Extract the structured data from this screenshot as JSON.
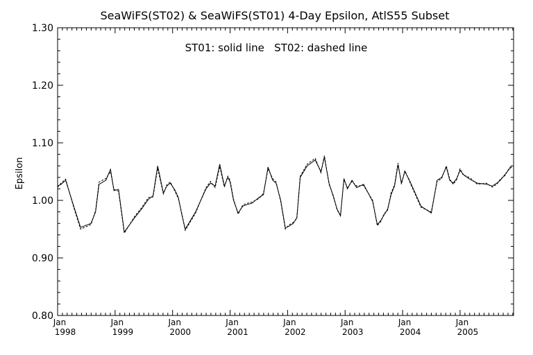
{
  "chart_data": {
    "type": "line",
    "title": "SeaWiFS(ST02) & SeaWiFS(ST01) 4-Day Epsilon, AtlS55 Subset",
    "subtitle": "ST01: solid line   ST02: dashed line",
    "xlabel": "",
    "ylabel": "Epsilon",
    "ylim": [
      0.8,
      1.3
    ],
    "xlim": [
      1998.0,
      2005.9
    ],
    "yticks": [
      "0.80",
      "0.90",
      "1.00",
      "1.10",
      "1.20",
      "1.30"
    ],
    "xticks": [
      {
        "value": 1998,
        "month": "Jan",
        "year": "1998"
      },
      {
        "value": 1999,
        "month": "Jan",
        "year": "1999"
      },
      {
        "value": 2000,
        "month": "Jan",
        "year": "2000"
      },
      {
        "value": 2001,
        "month": "Jan",
        "year": "2001"
      },
      {
        "value": 2002,
        "month": "Jan",
        "year": "2002"
      },
      {
        "value": 2003,
        "month": "Jan",
        "year": "2003"
      },
      {
        "value": 2004,
        "month": "Jan",
        "year": "2004"
      },
      {
        "value": 2005,
        "month": "Jan",
        "year": "2005"
      }
    ],
    "series": [
      {
        "name": "ST01",
        "style": "solid",
        "color": "#000000",
        "x": [
          1998.0,
          1998.06,
          1998.14,
          1998.28,
          1998.4,
          1998.58,
          1998.66,
          1998.72,
          1998.84,
          1998.92,
          1998.98,
          1999.06,
          1999.16,
          1999.34,
          1999.46,
          1999.58,
          1999.66,
          1999.74,
          1999.84,
          1999.9,
          1999.96,
          2000.04,
          2000.1,
          2000.16,
          2000.22,
          2000.4,
          2000.58,
          2000.66,
          2000.74,
          2000.82,
          2000.9,
          2000.96,
          2001.0,
          2001.06,
          2001.14,
          2001.22,
          2001.3,
          2001.38,
          2001.5,
          2001.58,
          2001.66,
          2001.74,
          2001.8,
          2001.88,
          2001.96,
          2002.02,
          2002.1,
          2002.16,
          2002.22,
          2002.34,
          2002.48,
          2002.58,
          2002.64,
          2002.72,
          2002.8,
          2002.86,
          2002.92,
          2002.98,
          2003.04,
          2003.12,
          2003.2,
          2003.32,
          2003.48,
          2003.56,
          2003.62,
          2003.68,
          2003.74,
          2003.8,
          2003.86,
          2003.92,
          2003.98,
          2004.04,
          2004.12,
          2004.32,
          2004.5,
          2004.6,
          2004.68,
          2004.76,
          2004.82,
          2004.88,
          2004.94,
          2005.0,
          2005.06,
          2005.12,
          2005.2,
          2005.3,
          2005.46,
          2005.56,
          2005.64,
          2005.7,
          2005.78,
          2005.86,
          2005.9
        ],
        "y": [
          1.025,
          1.028,
          1.035,
          0.99,
          0.953,
          0.96,
          0.98,
          1.028,
          1.035,
          1.054,
          1.017,
          1.019,
          0.945,
          0.97,
          0.985,
          1.002,
          1.008,
          1.06,
          1.013,
          1.025,
          1.03,
          1.018,
          1.005,
          0.975,
          0.95,
          0.98,
          1.02,
          1.03,
          1.025,
          1.063,
          1.025,
          1.04,
          1.032,
          1.0,
          0.978,
          0.99,
          0.993,
          0.995,
          1.005,
          1.01,
          1.058,
          1.035,
          1.03,
          1.0,
          0.952,
          0.955,
          0.96,
          0.97,
          1.04,
          1.06,
          1.07,
          1.05,
          1.075,
          1.03,
          1.005,
          0.985,
          0.973,
          1.038,
          1.02,
          1.035,
          1.022,
          1.028,
          0.998,
          0.958,
          0.965,
          0.975,
          0.985,
          1.01,
          1.025,
          1.062,
          1.03,
          1.05,
          1.035,
          0.99,
          0.978,
          1.035,
          1.04,
          1.058,
          1.035,
          1.03,
          1.038,
          1.052,
          1.045,
          1.04,
          1.035,
          1.03,
          1.028,
          1.025,
          1.03,
          1.035,
          1.045,
          1.055,
          1.058
        ]
      },
      {
        "name": "ST02",
        "style": "dashed",
        "color": "#000000",
        "x": [
          1998.0,
          1998.06,
          1998.14,
          1998.28,
          1998.4,
          1998.58,
          1998.66,
          1998.72,
          1998.84,
          1998.92,
          1998.98,
          1999.06,
          1999.16,
          1999.34,
          1999.46,
          1999.58,
          1999.66,
          1999.74,
          1999.84,
          1999.9,
          1999.96,
          2000.04,
          2000.1,
          2000.16,
          2000.22,
          2000.4,
          2000.58,
          2000.66,
          2000.74,
          2000.82,
          2000.9,
          2000.96,
          2001.0,
          2001.06,
          2001.14,
          2001.22,
          2001.3,
          2001.38,
          2001.5,
          2001.58,
          2001.66,
          2001.74,
          2001.8,
          2001.88,
          2001.96,
          2002.02,
          2002.1,
          2002.16,
          2002.22,
          2002.34,
          2002.48,
          2002.58,
          2002.64,
          2002.72,
          2002.8,
          2002.86,
          2002.92,
          2002.98,
          2003.04,
          2003.12,
          2003.2,
          2003.32,
          2003.48,
          2003.56,
          2003.62,
          2003.68,
          2003.74,
          2003.8,
          2003.86,
          2003.92,
          2003.98,
          2004.04,
          2004.12,
          2004.32,
          2004.5,
          2004.6,
          2004.68,
          2004.76,
          2004.82,
          2004.88,
          2004.94,
          2005.0,
          2005.06,
          2005.12,
          2005.2,
          2005.3,
          2005.46,
          2005.56,
          2005.64,
          2005.7,
          2005.78,
          2005.86,
          2005.9
        ],
        "y": [
          1.023,
          1.03,
          1.037,
          0.988,
          0.95,
          0.958,
          0.982,
          1.032,
          1.038,
          1.05,
          1.019,
          1.016,
          0.943,
          0.972,
          0.987,
          1.005,
          1.006,
          1.056,
          1.011,
          1.027,
          1.032,
          1.016,
          1.003,
          0.977,
          0.948,
          0.978,
          1.022,
          1.033,
          1.022,
          1.059,
          1.023,
          1.042,
          1.035,
          1.002,
          0.976,
          0.992,
          0.995,
          0.997,
          1.003,
          1.012,
          1.055,
          1.038,
          1.032,
          0.998,
          0.95,
          0.957,
          0.962,
          0.968,
          1.042,
          1.063,
          1.073,
          1.048,
          1.078,
          1.028,
          1.007,
          0.983,
          0.975,
          1.036,
          1.022,
          1.033,
          1.025,
          1.026,
          1.0,
          0.956,
          0.963,
          0.977,
          0.983,
          1.013,
          1.027,
          1.065,
          1.028,
          1.052,
          1.033,
          0.988,
          0.98,
          1.033,
          1.038,
          1.06,
          1.037,
          1.028,
          1.036,
          1.055,
          1.043,
          1.042,
          1.037,
          1.028,
          1.03,
          1.023,
          1.028,
          1.037,
          1.043,
          1.057,
          1.06
        ]
      }
    ]
  }
}
